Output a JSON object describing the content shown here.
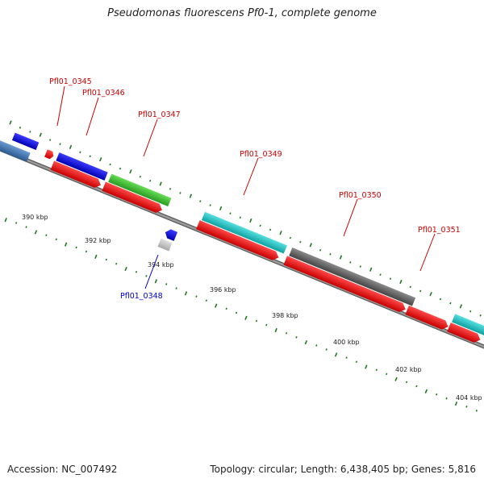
{
  "title": "Pseudomonas fluorescens Pf0-1, complete genome",
  "footer": {
    "accession": "Accession: NC_007492",
    "summary": "Topology: circular; Length: 6,438,405 bp; Genes: 5,816"
  },
  "colors": {
    "backbone": "#8a8a8a",
    "tick_major": "#1d7a1d",
    "tick_minor": "#1d7a1d",
    "label_forward": "#cc0000",
    "label_reverse": "#0000cc"
  },
  "ruler": {
    "unit": "kbp",
    "labels": [
      "390 kbp",
      "392 kbp",
      "394 kbp",
      "396 kbp",
      "398 kbp",
      "400 kbp",
      "402 kbp",
      "404 kbp"
    ]
  },
  "genes": [
    {
      "name": "Pfl01_0345",
      "strand": "forward",
      "color": "#0000ee",
      "labeled": true
    },
    {
      "name": "Pfl01_0346",
      "strand": "forward",
      "color": "#ee0000",
      "labeled": true
    },
    {
      "name": "Pfl01_0347",
      "strand": "forward",
      "color": "#44cc33",
      "labeled": true
    },
    {
      "name": "Pfl01_0348",
      "strand": "reverse",
      "color": "#0000ee",
      "labeled": true
    },
    {
      "name": "Pfl01_0349",
      "strand": "forward",
      "color": "#22cccc",
      "labeled": true
    },
    {
      "name": "Pfl01_0350",
      "strand": "forward",
      "color": "#666666",
      "labeled": true
    },
    {
      "name": "Pfl01_0351",
      "strand": "forward",
      "color": "#22cccc",
      "labeled": true
    }
  ]
}
